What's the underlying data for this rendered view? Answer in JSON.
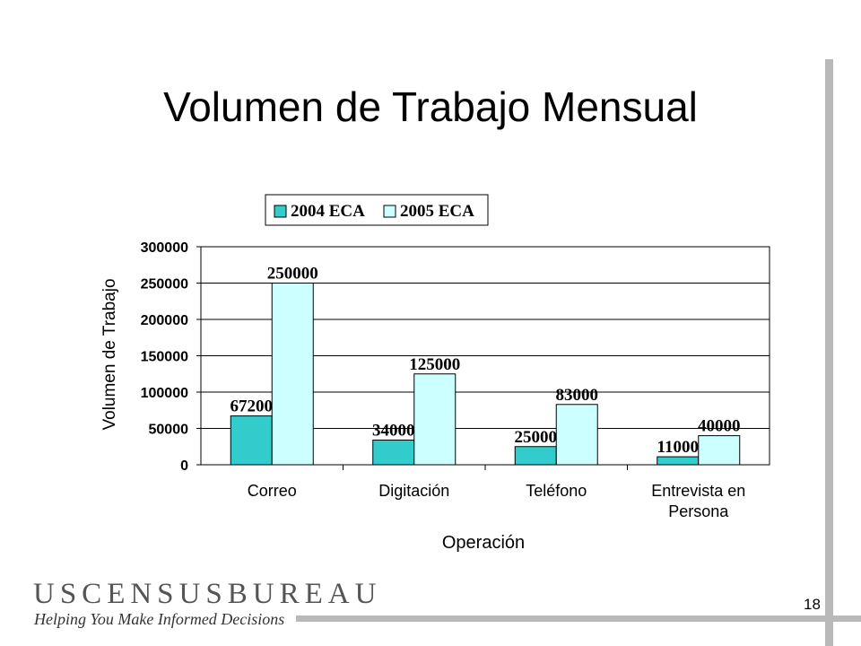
{
  "slide": {
    "title": "Volumen de Trabajo Mensual",
    "page_number": "18"
  },
  "branding": {
    "logo_text": "USCENSUSBUREAU",
    "tagline": "Helping You Make Informed Decisions"
  },
  "chart_data": {
    "type": "bar",
    "categories": [
      [
        "Correo"
      ],
      [
        "Digitación"
      ],
      [
        "Teléfono"
      ],
      [
        "Entrevista en",
        "Persona"
      ]
    ],
    "series": [
      {
        "name": "2004 ECA",
        "values": [
          67200,
          34000,
          25000,
          11000
        ],
        "color": "#33cccc"
      },
      {
        "name": "2005 ECA",
        "values": [
          250000,
          125000,
          83000,
          40000
        ],
        "color": "#ccffff"
      }
    ],
    "xlabel": "Operación",
    "ylabel": "Volumen de Trabajo",
    "ylim": [
      0,
      300000
    ],
    "yticks": [
      0,
      50000,
      100000,
      150000,
      200000,
      250000,
      300000
    ],
    "grid": true,
    "legend_position": "top"
  }
}
